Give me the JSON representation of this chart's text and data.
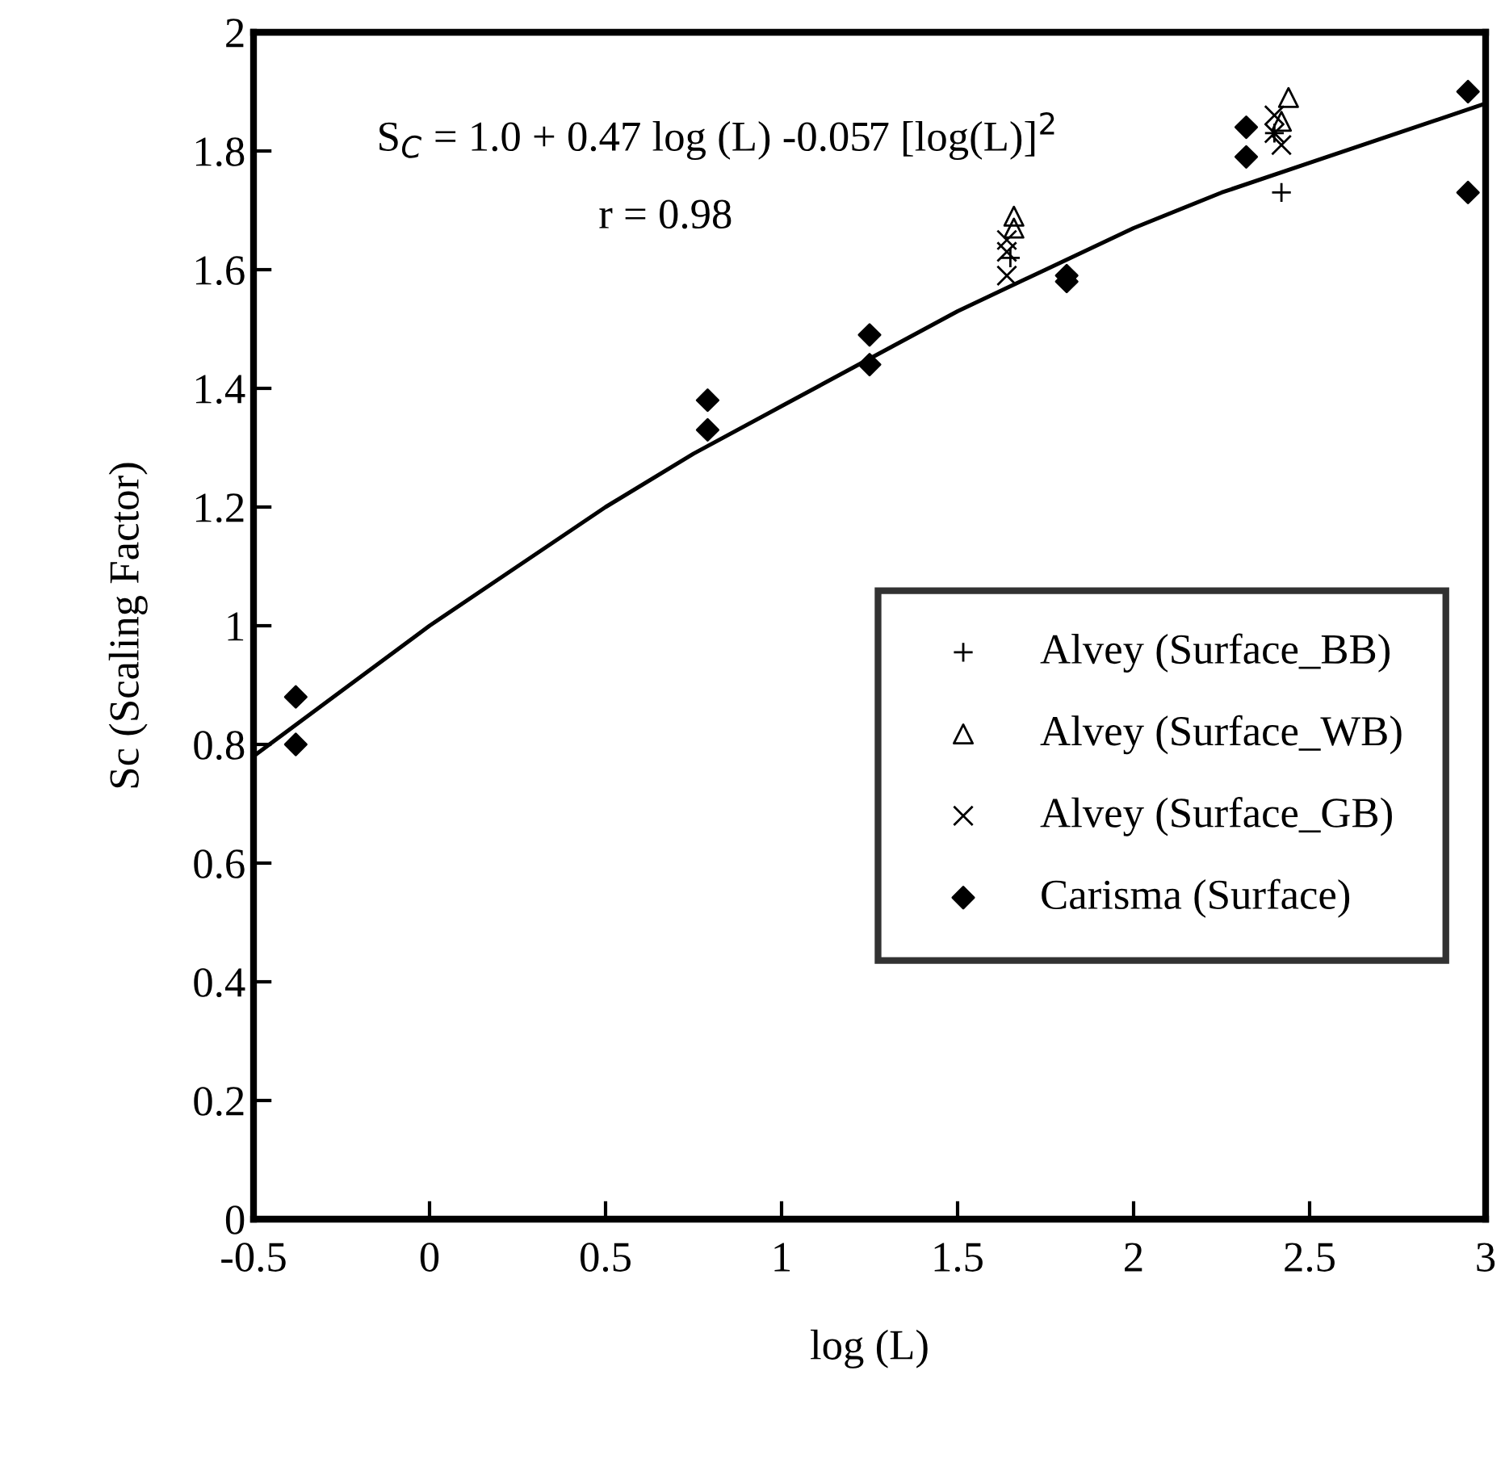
{
  "chart_data": {
    "type": "scatter",
    "xlabel": "log (L)",
    "ylabel": "Sc (Scaling Factor)",
    "xlim": [
      -0.5,
      3
    ],
    "xticks": [
      -0.5,
      0,
      0.5,
      1,
      1.5,
      2,
      2.5,
      3
    ],
    "ylim": [
      0,
      2
    ],
    "yticks": [
      0,
      0.2,
      0.4,
      0.6,
      0.8,
      1,
      1.2,
      1.4,
      1.6,
      1.8,
      2
    ],
    "grid": false,
    "legend": "bottom right",
    "annotations": [
      "S$_{C}$ = 1.0 + 0.47 log (L) -0.057 [log(L)]$^{2}$",
      "r = 0.98"
    ],
    "series": [
      {
        "name": "Alvey (Surface_BB)",
        "color": "#000000",
        "marker": "plus",
        "x": [
          1.65,
          2.42,
          2.4
        ],
        "values": [
          1.62,
          1.73,
          1.83
        ]
      },
      {
        "name": "Alvey (Surface_WB)",
        "color": "#000000",
        "marker": "triangle",
        "x": [
          1.66,
          1.66,
          2.44,
          2.42
        ],
        "values": [
          1.69,
          1.67,
          1.89,
          1.85
        ]
      },
      {
        "name": "Alvey (Surface_GB)",
        "color": "#000000",
        "marker": "cross",
        "x": [
          1.64,
          1.64,
          1.64,
          2.4,
          2.4,
          2.42
        ],
        "values": [
          1.65,
          1.63,
          1.59,
          1.86,
          1.83,
          1.81
        ]
      },
      {
        "name": "Carisma (Surface)",
        "color": "#000000",
        "marker": "diamond",
        "x": [
          -0.38,
          -0.38,
          0.79,
          0.79,
          1.25,
          1.25,
          1.81,
          1.81,
          2.32,
          2.32,
          2.95,
          2.95
        ],
        "values": [
          0.88,
          0.8,
          1.38,
          1.33,
          1.49,
          1.44,
          1.58,
          1.59,
          1.84,
          1.79,
          1.9,
          1.73
        ]
      },
      {
        "type": "line",
        "color": "#000000",
        "marker": "none",
        "line_style": "solid",
        "x": [
          -0.5,
          -0.25,
          0,
          0.25,
          0.5,
          0.75,
          1,
          1.25,
          1.5,
          1.75,
          2,
          2.25,
          2.5,
          2.75,
          3
        ],
        "values": [
          0.78,
          0.89,
          1.0,
          1.1,
          1.2,
          1.29,
          1.37,
          1.45,
          1.53,
          1.6,
          1.67,
          1.73,
          1.78,
          1.83,
          1.88
        ]
      }
    ]
  }
}
